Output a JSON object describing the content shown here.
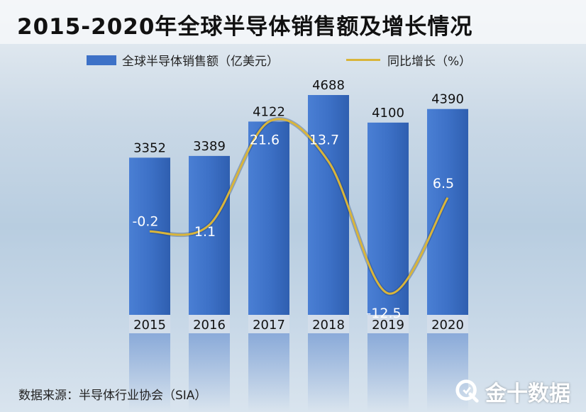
{
  "title": "2015-2020年全球半导体销售额及增长情况",
  "legend": {
    "bar_label": "全球半导体销售额（亿美元）",
    "line_label": "同比增长（%）"
  },
  "source": "数据来源：半导体行业协会（SIA）",
  "logo_text": "金十数据",
  "colors": {
    "bar": "#3d71c7",
    "line": "#d9b53a"
  },
  "chart_data": {
    "type": "bar",
    "categories": [
      "2015",
      "2016",
      "2017",
      "2018",
      "2019",
      "2020"
    ],
    "series": [
      {
        "name": "全球半导体销售额（亿美元）",
        "type": "bar",
        "values": [
          3352,
          3389,
          4122,
          4688,
          4100,
          4390
        ]
      },
      {
        "name": "同比增长（%）",
        "type": "line",
        "values": [
          -0.2,
          1.1,
          21.6,
          13.7,
          -12.5,
          6.5
        ]
      }
    ],
    "title": "2015-2020年全球半导体销售额及增长情况",
    "xlabel": "",
    "ylabel": "",
    "legend": "top",
    "grid": false
  }
}
